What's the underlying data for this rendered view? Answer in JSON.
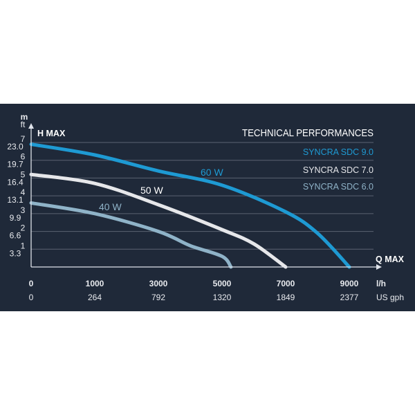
{
  "chart_data": {
    "type": "line",
    "title": "TECHNICAL PERFORMANCES",
    "y_units": [
      "m",
      "ft"
    ],
    "y_axis_label": "H MAX",
    "x_axis_label": "Q MAX",
    "y_ticks_m": [
      1,
      2,
      3,
      4,
      5,
      6,
      7
    ],
    "y_ticks_ft": [
      "3.3",
      "6.6",
      "9.9",
      "13.1",
      "16.4",
      "19.7",
      "23.0"
    ],
    "x_ticks_lh": [
      "0",
      "1000",
      "3000",
      "5000",
      "7000",
      "9000"
    ],
    "x_ticks_usgph": [
      "0",
      "264",
      "792",
      "1320",
      "1849",
      "2377"
    ],
    "x_unit_lh": "l/h",
    "x_unit_usgph": "US gph",
    "ylim": [
      0,
      7
    ],
    "grid": true,
    "legend_position": "top-right",
    "legend": [
      {
        "label": "SYNCRA SDC 9.0",
        "color": "#1e9ad3"
      },
      {
        "label": "SYNCRA SDC 7.0",
        "color": "#e6e7ea"
      },
      {
        "label": "SYNCRA SDC 6.0",
        "color": "#8fb3c8"
      }
    ],
    "series": [
      {
        "name": "60 W",
        "color": "#1e9ad3",
        "x": [
          0,
          1000,
          3000,
          5000,
          7000,
          8000,
          9000
        ],
        "y": [
          6.9,
          6.3,
          5.4,
          4.6,
          3.1,
          1.9,
          0
        ]
      },
      {
        "name": "50 W",
        "color": "#e6e7ea",
        "x": [
          0,
          1000,
          3000,
          5000,
          6000,
          7000
        ],
        "y": [
          5.2,
          4.7,
          3.5,
          2.1,
          1.3,
          0
        ]
      },
      {
        "name": "40 W",
        "color": "#8fb3c8",
        "x": [
          0,
          1000,
          3000,
          4000,
          5000,
          5280
        ],
        "y": [
          3.6,
          3.0,
          2.0,
          1.2,
          0.6,
          0
        ]
      }
    ]
  },
  "colors": {
    "background": "#1f2939",
    "grid": "#5b6372",
    "text": "#e8eaee"
  }
}
